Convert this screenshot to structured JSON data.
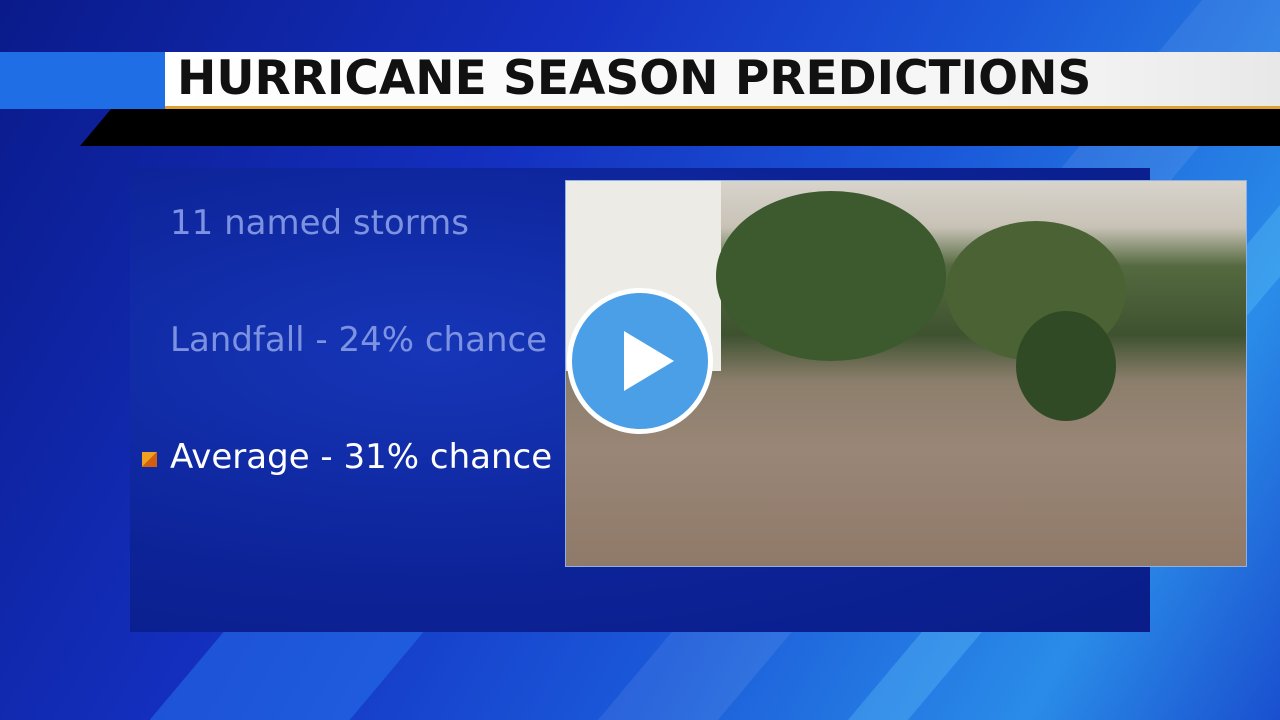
{
  "graphic": {
    "title": "HURRICANE SEASON PREDICTIONS",
    "items": [
      {
        "text": "11 named storms",
        "highlighted": false
      },
      {
        "text": "Landfall - 24% chance",
        "highlighted": false
      },
      {
        "text": "Average - 31% chance",
        "highlighted": true
      }
    ]
  },
  "video": {
    "play_icon": "play-icon",
    "accent_color": "#4a9fe6"
  }
}
